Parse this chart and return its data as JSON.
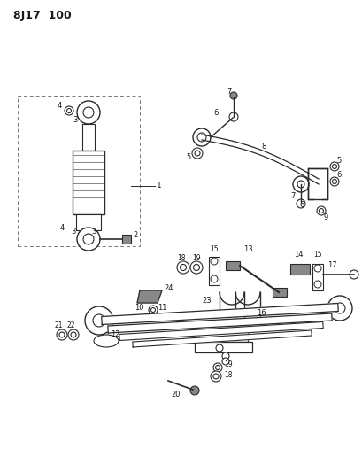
{
  "title": "8J17  100",
  "bg_color": "#ffffff",
  "line_color": "#2a2a2a",
  "text_color": "#1a1a1a",
  "fig_width": 4.09,
  "fig_height": 5.33,
  "dpi": 100
}
